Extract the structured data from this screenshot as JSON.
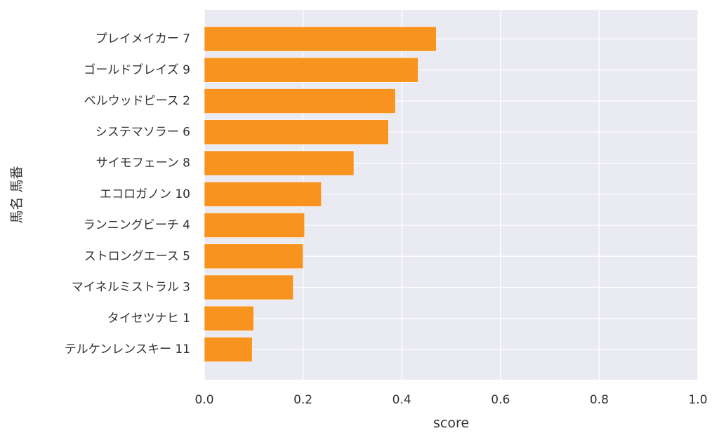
{
  "chart_data": {
    "type": "bar",
    "orientation": "horizontal",
    "xlabel": "score",
    "ylabel": "馬名 馬番",
    "xlim": [
      0.0,
      1.0
    ],
    "xticks": [
      "0.0",
      "0.2",
      "0.4",
      "0.6",
      "0.8",
      "1.0"
    ],
    "grid": true,
    "bar_color": "#f7931e",
    "background_color": "#eaeaf2",
    "categories": [
      "プレイメイカー 7",
      "ゴールドブレイズ 9",
      "ベルウッドピース 2",
      "システマソラー 6",
      "サイモフェーン 8",
      "エコロガノン 10",
      "ランニングビーチ 4",
      "ストロングエース 5",
      "マイネルミストラル 3",
      "タイセツナヒ 1",
      "テルケンレンスキー 11"
    ],
    "values": [
      0.47,
      0.433,
      0.387,
      0.373,
      0.303,
      0.237,
      0.203,
      0.2,
      0.18,
      0.1,
      0.097
    ]
  }
}
